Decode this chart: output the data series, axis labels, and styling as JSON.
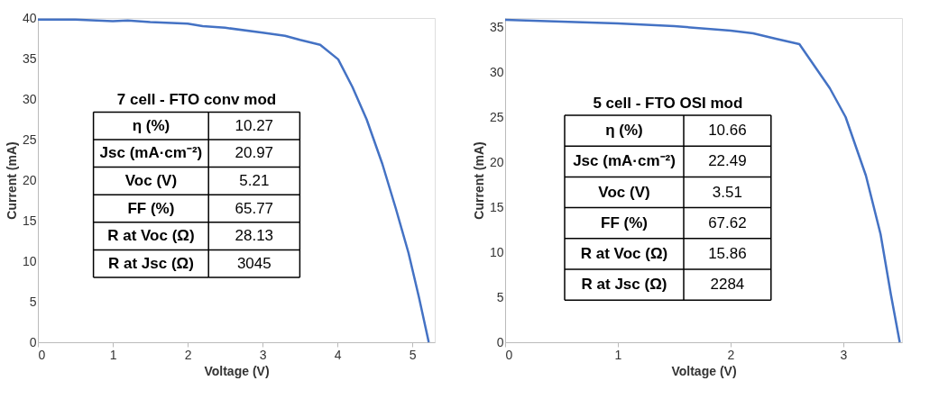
{
  "chart_data": [
    {
      "type": "line",
      "xlabel": "Voltage (V)",
      "ylabel": "Current (mA)",
      "xlim": [
        0,
        5.3
      ],
      "ylim": [
        0,
        40
      ],
      "xticks": [
        0,
        1,
        2,
        3,
        4,
        5
      ],
      "yticks": [
        0,
        5,
        10,
        15,
        20,
        25,
        30,
        35,
        40
      ],
      "grid": false,
      "legend": false,
      "marker": "none",
      "line_style": "solid",
      "x": [
        0,
        0.5,
        1,
        1.2,
        1.5,
        2,
        2.2,
        2.5,
        3,
        3.3,
        3.5,
        3.77,
        4.01,
        4.2,
        4.39,
        4.6,
        4.78,
        4.95,
        5.09,
        5.22
      ],
      "series": [
        {
          "color": "#4472c4",
          "values": [
            39.8,
            39.8,
            39.6,
            39.7,
            39.5,
            39.3,
            39.0,
            38.8,
            38.2,
            37.8,
            37.3,
            36.7,
            34.9,
            31.5,
            27.5,
            22,
            16.5,
            11,
            5.5,
            0
          ]
        }
      ],
      "annotations": [
        "7 cell - FTO conv mod",
        "η (%)",
        "10.27",
        "Jsc (mA·cm⁻²)",
        "20.97",
        "Voc (V)",
        "5.21",
        "FF (%)",
        "65.77",
        "R at Voc (Ω)",
        "28.13",
        "R at Jsc (Ω)",
        "3045"
      ]
    },
    {
      "type": "line",
      "xlabel": "Voltage (V)",
      "ylabel": "Current (mA)",
      "xlim": [
        0,
        3.52
      ],
      "ylim": [
        0,
        36
      ],
      "xticks": [
        0,
        1,
        2,
        3
      ],
      "yticks": [
        0,
        5,
        10,
        15,
        20,
        25,
        30,
        35
      ],
      "grid": false,
      "legend": false,
      "marker": "none",
      "line_style": "solid",
      "x": [
        0,
        0.5,
        1,
        1.5,
        2,
        2.2,
        2.4,
        2.61,
        2.88,
        3.02,
        3.2,
        3.33,
        3.42,
        3.5
      ],
      "series": [
        {
          "color": "#4472c4",
          "values": [
            35.8,
            35.6,
            35.4,
            35.1,
            34.6,
            34.3,
            33.7,
            33.1,
            28.2,
            25.0,
            18.5,
            12,
            5.4,
            0
          ]
        }
      ],
      "annotations": [
        "5 cell - FTO OSI mod",
        "η (%)",
        "10.66",
        "Jsc (mA·cm⁻²)",
        "22.49",
        "Voc (V)",
        "3.51",
        "FF (%)",
        "67.62",
        "R at Voc (Ω)",
        "15.86",
        "R at Jsc (Ω)",
        "2284"
      ]
    }
  ]
}
